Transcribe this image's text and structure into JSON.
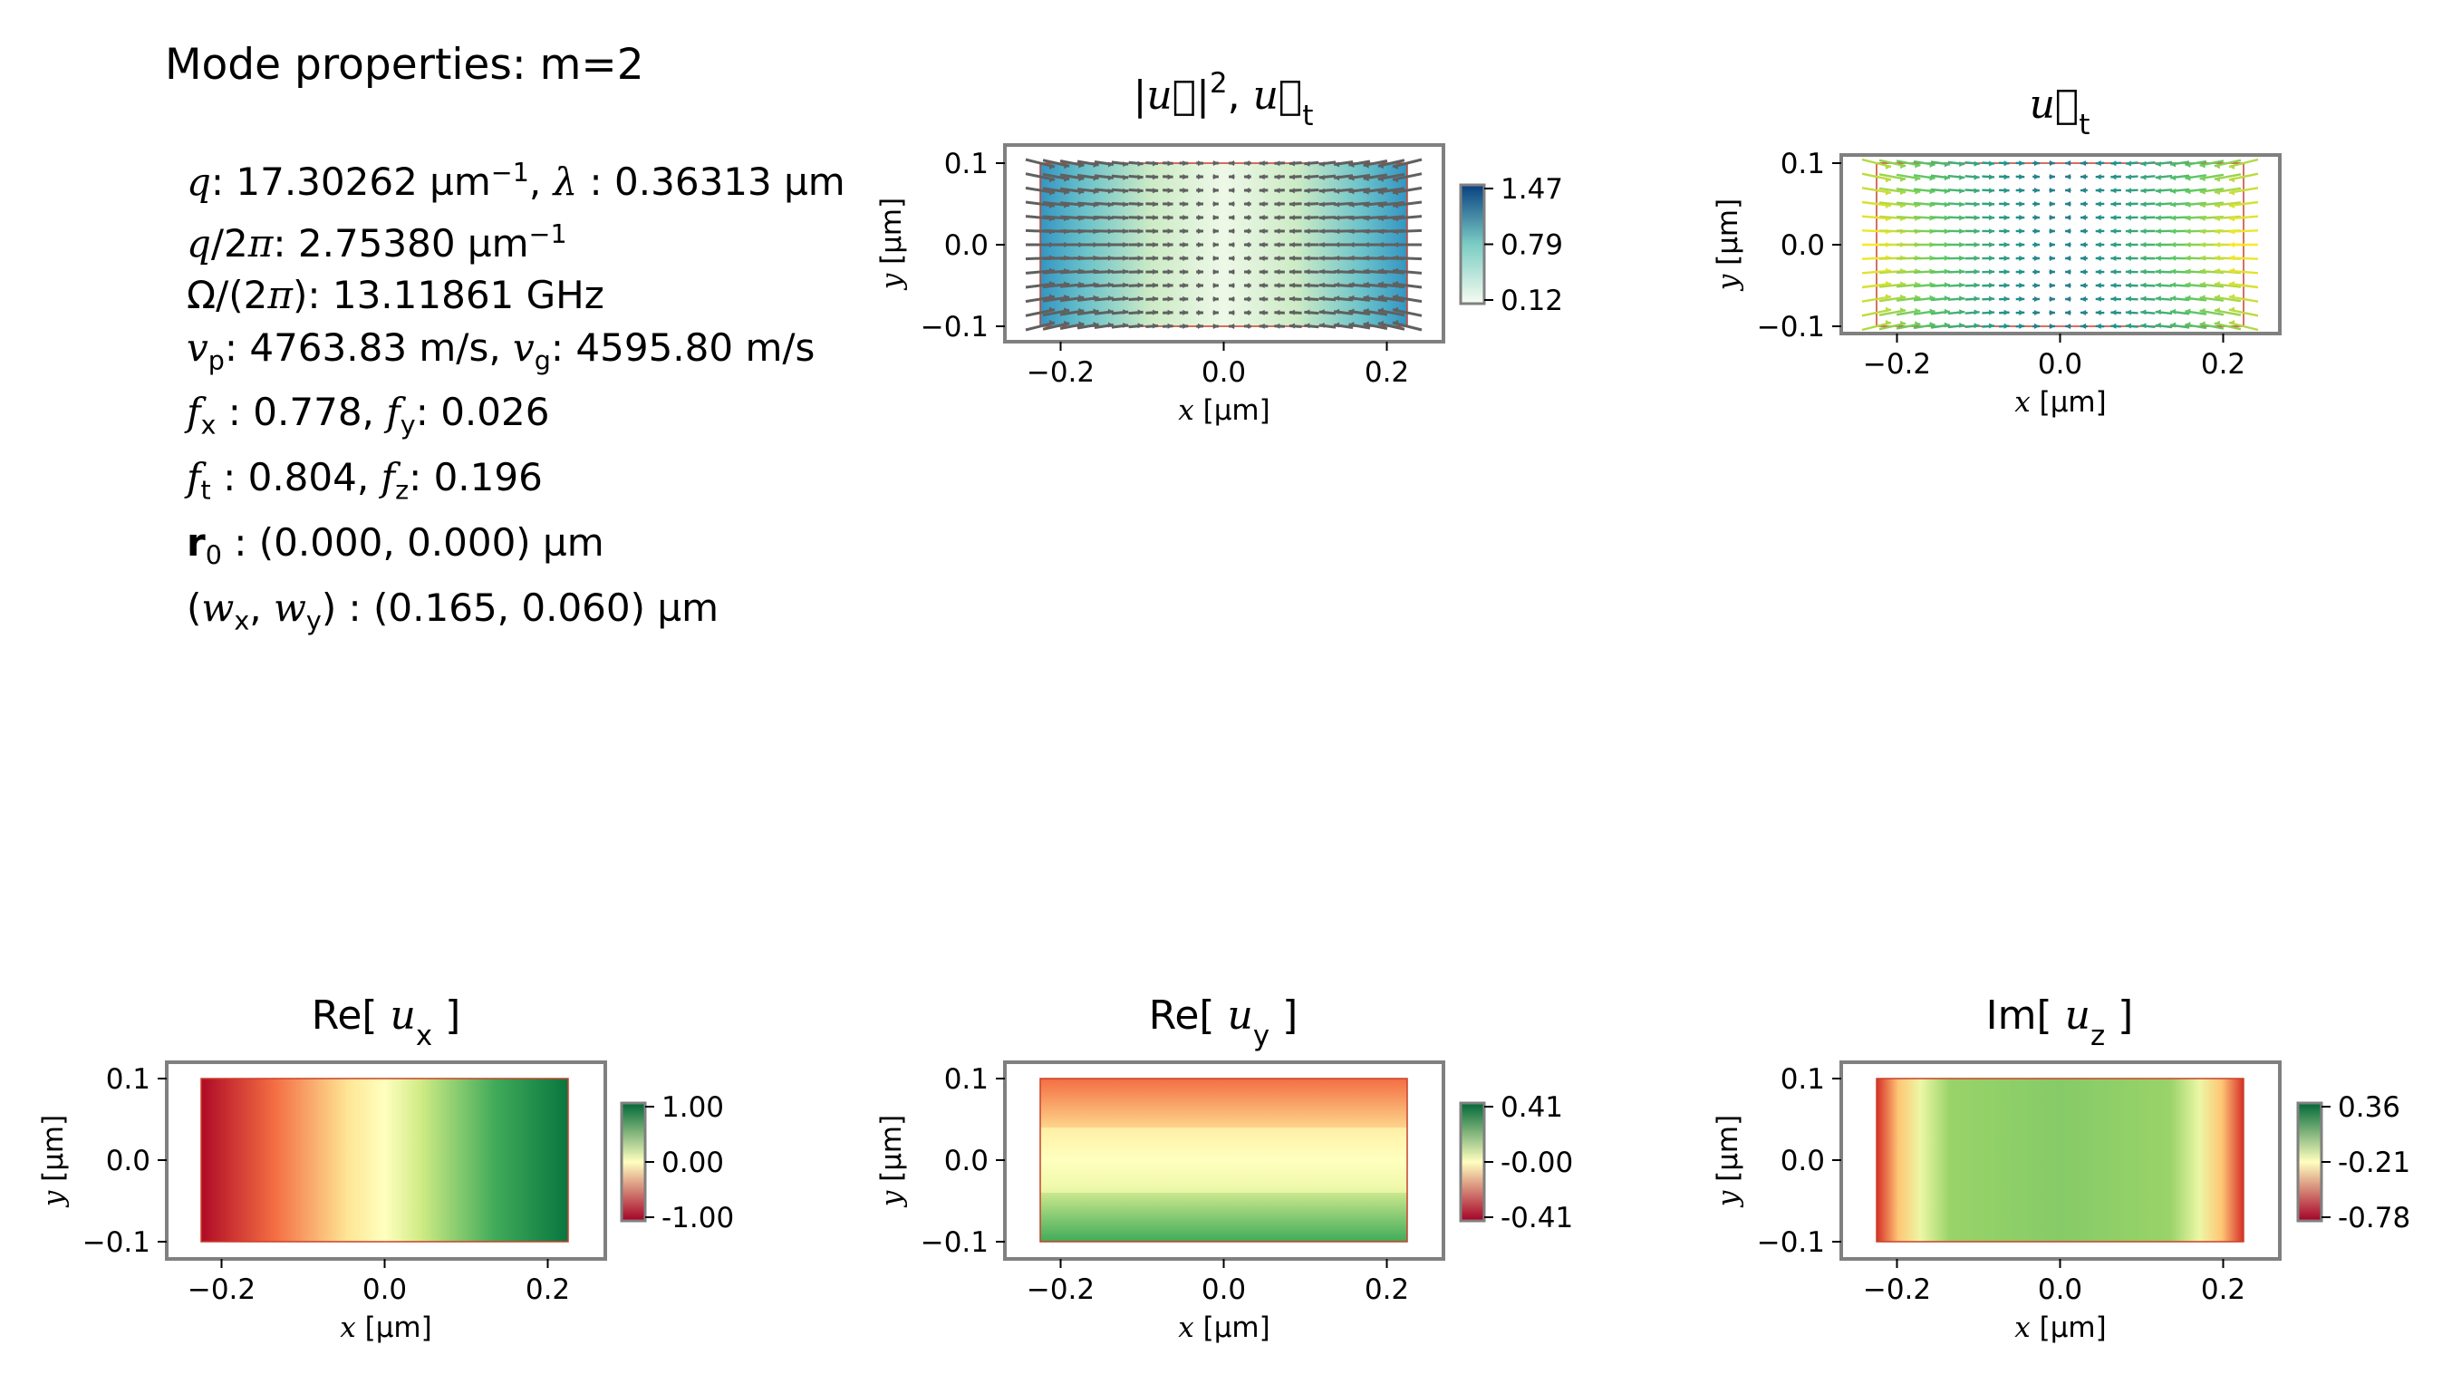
{
  "heading": "Mode properties: m=2",
  "properties": [
    {
      "parts": [
        [
          "i",
          "q"
        ],
        [
          "t",
          ": 17.30262 µm"
        ],
        [
          "sup",
          "−1"
        ],
        [
          "t",
          ", "
        ],
        [
          "i",
          "λ"
        ],
        [
          "t",
          " :  0.36313 µm"
        ]
      ]
    },
    {
      "parts": [
        [
          "i",
          "q"
        ],
        [
          "t",
          "/2"
        ],
        [
          "i",
          "π"
        ],
        [
          "t",
          ": 2.75380 µm"
        ],
        [
          "sup",
          "−1"
        ]
      ]
    },
    {
      "parts": [
        [
          "t",
          "Ω/(2"
        ],
        [
          "i",
          "π"
        ],
        [
          "t",
          "): 13.11861 GHz"
        ]
      ]
    },
    {
      "parts": [
        [
          "i",
          "v"
        ],
        [
          "sub",
          "p"
        ],
        [
          "t",
          ": 4763.83 m/s, "
        ],
        [
          "i",
          "v"
        ],
        [
          "sub",
          "g"
        ],
        [
          "t",
          ": 4595.80 m/s"
        ]
      ]
    },
    {
      "parts": [
        [
          "i",
          "f"
        ],
        [
          "sub",
          "x"
        ],
        [
          "t",
          " :  0.778, "
        ],
        [
          "i",
          "f"
        ],
        [
          "sub",
          "y"
        ],
        [
          "t",
          ": 0.026"
        ]
      ]
    },
    {
      "parts": [
        [
          "i",
          "f"
        ],
        [
          "sub",
          "t"
        ],
        [
          "t",
          " :  0.804, "
        ],
        [
          "i",
          "f"
        ],
        [
          "sub",
          "z"
        ],
        [
          "t",
          ": 0.196"
        ]
      ]
    },
    {
      "parts": [
        [
          "b",
          "r"
        ],
        [
          "sub",
          "0"
        ],
        [
          "t",
          " :  (0.000, 0.000) µm"
        ]
      ]
    },
    {
      "parts": [
        [
          "t",
          "("
        ],
        [
          "i",
          "w"
        ],
        [
          "sub",
          "x"
        ],
        [
          "t",
          ", "
        ],
        [
          "i",
          "w"
        ],
        [
          "sub",
          "y"
        ],
        [
          "t",
          ") :  (0.165, 0.060) µm"
        ]
      ]
    }
  ],
  "colors": {
    "frame": "#808080",
    "rect_edge": "#c8402a",
    "arrow": "#606060"
  },
  "chart_data": [
    {
      "id": "intensity",
      "type": "heatmap",
      "title_parts": [
        [
          "t",
          "|"
        ],
        [
          "i",
          "u⃗"
        ],
        [
          "t",
          "|"
        ],
        [
          "sup",
          "2"
        ],
        [
          "t",
          ", "
        ],
        [
          "i",
          "u⃗"
        ],
        [
          "sub",
          "t"
        ]
      ],
      "xlabel_parts": [
        [
          "i",
          "x"
        ],
        [
          "t",
          " [µm]"
        ]
      ],
      "ylabel_parts": [
        [
          "i",
          "y"
        ],
        [
          "t",
          " [µm]"
        ]
      ],
      "xlim": [
        -0.225,
        0.225
      ],
      "ylim": [
        -0.1,
        0.1
      ],
      "xticks": [
        -0.2,
        0.0,
        0.2
      ],
      "xtick_labels": [
        "−0.2",
        "0.0",
        "0.2"
      ],
      "yticks": [
        -0.1,
        0.0,
        0.1
      ],
      "ytick_labels": [
        "−0.1",
        "0.0",
        "0.1"
      ],
      "colormap": "GnBu",
      "colorbar": {
        "ticks": [
          "1.47",
          "0.79",
          "0.12"
        ],
        "min": 0.12,
        "max": 1.47
      },
      "overlay": "quiver-gray"
    },
    {
      "id": "ut",
      "type": "quiver",
      "title_parts": [
        [
          "i",
          "u⃗"
        ],
        [
          "sub",
          "t"
        ]
      ],
      "xlabel_parts": [
        [
          "i",
          "x"
        ],
        [
          "t",
          " [µm]"
        ]
      ],
      "ylabel_parts": [
        [
          "i",
          "y"
        ],
        [
          "t",
          " [µm]"
        ]
      ],
      "xlim": [
        -0.225,
        0.225
      ],
      "ylim": [
        -0.1,
        0.1
      ],
      "xticks": [
        -0.2,
        0.0,
        0.2
      ],
      "xtick_labels": [
        "−0.2",
        "0.0",
        "0.2"
      ],
      "yticks": [
        -0.1,
        0.0,
        0.1
      ],
      "ytick_labels": [
        "−0.1",
        "0.0",
        "0.1"
      ],
      "colormap": "viridis"
    },
    {
      "id": "re_ux",
      "type": "heatmap",
      "title_parts": [
        [
          "t",
          "Re[ "
        ],
        [
          "i",
          "u"
        ],
        [
          "sub",
          "x"
        ],
        [
          "t",
          " ]"
        ]
      ],
      "xlabel_parts": [
        [
          "i",
          "x"
        ],
        [
          "t",
          " [µm]"
        ]
      ],
      "ylabel_parts": [
        [
          "i",
          "y"
        ],
        [
          "t",
          " [µm]"
        ]
      ],
      "xlim": [
        -0.225,
        0.225
      ],
      "ylim": [
        -0.1,
        0.1
      ],
      "xticks": [
        -0.2,
        0.0,
        0.2
      ],
      "xtick_labels": [
        "−0.2",
        "0.0",
        "0.2"
      ],
      "yticks": [
        -0.1,
        0.0,
        0.1
      ],
      "ytick_labels": [
        "−0.1",
        "0.0",
        "0.1"
      ],
      "colormap": "RdYlGn",
      "colorbar": {
        "ticks": [
          "1.00",
          "0.00",
          "-1.00"
        ],
        "min": -1.0,
        "max": 1.0
      }
    },
    {
      "id": "re_uy",
      "type": "heatmap",
      "title_parts": [
        [
          "t",
          "Re[ "
        ],
        [
          "i",
          "u"
        ],
        [
          "sub",
          "y"
        ],
        [
          "t",
          " ]"
        ]
      ],
      "xlabel_parts": [
        [
          "i",
          "x"
        ],
        [
          "t",
          " [µm]"
        ]
      ],
      "ylabel_parts": [
        [
          "i",
          "y"
        ],
        [
          "t",
          " [µm]"
        ]
      ],
      "xlim": [
        -0.225,
        0.225
      ],
      "ylim": [
        -0.1,
        0.1
      ],
      "xticks": [
        -0.2,
        0.0,
        0.2
      ],
      "xtick_labels": [
        "−0.2",
        "0.0",
        "0.2"
      ],
      "yticks": [
        -0.1,
        0.0,
        0.1
      ],
      "ytick_labels": [
        "−0.1",
        "0.0",
        "0.1"
      ],
      "colormap": "RdYlGn",
      "colorbar": {
        "ticks": [
          "0.41",
          "-0.00",
          "-0.41"
        ],
        "min": -0.41,
        "max": 0.41
      }
    },
    {
      "id": "im_uz",
      "type": "heatmap",
      "title_parts": [
        [
          "t",
          "Im[ "
        ],
        [
          "i",
          "u"
        ],
        [
          "sub",
          "z"
        ],
        [
          "t",
          " ]"
        ]
      ],
      "xlabel_parts": [
        [
          "i",
          "x"
        ],
        [
          "t",
          " [µm]"
        ]
      ],
      "ylabel_parts": [
        [
          "i",
          "y"
        ],
        [
          "t",
          " [µm]"
        ]
      ],
      "xlim": [
        -0.225,
        0.225
      ],
      "ylim": [
        -0.1,
        0.1
      ],
      "xticks": [
        -0.2,
        0.0,
        0.2
      ],
      "xtick_labels": [
        "−0.2",
        "0.0",
        "0.2"
      ],
      "yticks": [
        -0.1,
        0.0,
        0.1
      ],
      "ytick_labels": [
        "−0.1",
        "0.0",
        "0.1"
      ],
      "colormap": "RdYlGn",
      "colorbar": {
        "ticks": [
          "0.36",
          "-0.21",
          "-0.78"
        ],
        "min": -0.78,
        "max": 0.45
      }
    }
  ]
}
